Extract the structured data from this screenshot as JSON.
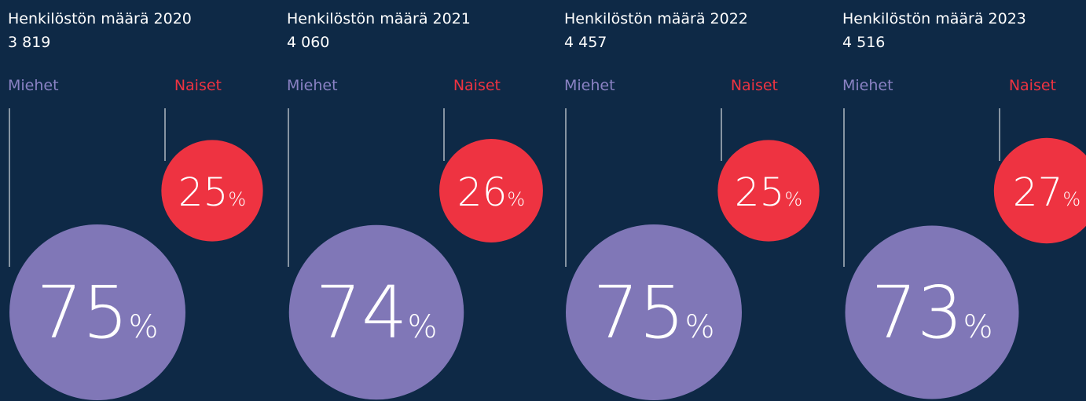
{
  "unit": "%",
  "panels": [
    {
      "title": "Henkilöstön määrä 2020",
      "total": "3 819",
      "men_label": "Miehet",
      "women_label": "Naiset",
      "men": 75,
      "women": 25
    },
    {
      "title": "Henkilöstön määrä 2021",
      "total": "4 060",
      "men_label": "Miehet",
      "women_label": "Naiset",
      "men": 74,
      "women": 26
    },
    {
      "title": "Henkilöstön määrä 2022",
      "total": "4 457",
      "men_label": "Miehet",
      "women_label": "Naiset",
      "men": 75,
      "women": 25
    },
    {
      "title": "Henkilöstön määrä 2023",
      "total": "4 516",
      "men_label": "Miehet",
      "women_label": "Naiset",
      "men": 73,
      "women": 27
    }
  ]
}
